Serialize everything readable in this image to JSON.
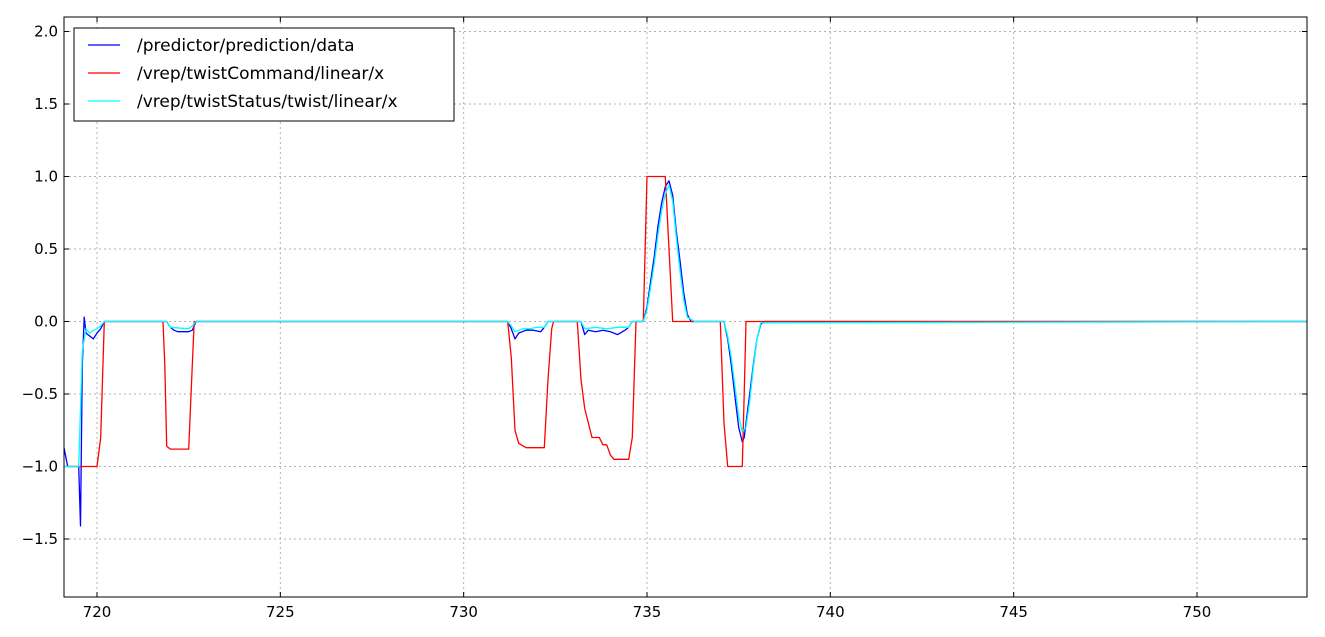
{
  "chart_data": {
    "type": "line",
    "title": "",
    "xlabel": "",
    "ylabel": "",
    "xlim": [
      719.1,
      753.0
    ],
    "ylim": [
      -1.9,
      2.1
    ],
    "xticks": [
      720,
      725,
      730,
      735,
      740,
      745,
      750
    ],
    "yticks": [
      -1.5,
      -1.0,
      -0.5,
      0.0,
      0.5,
      1.0,
      1.5,
      2.0
    ],
    "xtick_labels": [
      "720",
      "725",
      "730",
      "735",
      "740",
      "745",
      "750"
    ],
    "ytick_labels": [
      "−1.5",
      "−1.0",
      "−0.5",
      "0.0",
      "0.5",
      "1.0",
      "1.5",
      "2.0"
    ],
    "grid": true,
    "legend_position": "top-left",
    "series": [
      {
        "name": "/predictor/prediction/data",
        "color": "#0000ff",
        "x": [
          719.1,
          719.2,
          719.3,
          719.4,
          719.5,
          719.55,
          719.6,
          719.65,
          719.7,
          719.8,
          719.9,
          720.0,
          720.1,
          720.2,
          721.9,
          722.0,
          722.1,
          722.2,
          722.4,
          722.5,
          722.6,
          722.7,
          731.2,
          731.3,
          731.4,
          731.5,
          731.7,
          731.9,
          732.1,
          732.2,
          732.3,
          733.2,
          733.3,
          733.4,
          733.6,
          733.8,
          734.0,
          734.2,
          734.4,
          734.5,
          734.6,
          734.9,
          735.0,
          735.1,
          735.2,
          735.3,
          735.4,
          735.5,
          735.6,
          735.7,
          735.8,
          735.9,
          736.0,
          736.1,
          736.2,
          736.3,
          737.1,
          737.2,
          737.3,
          737.4,
          737.5,
          737.6,
          737.65,
          737.7,
          737.8,
          737.9,
          738.0,
          738.1,
          738.2,
          753.0
        ],
        "y": [
          -0.87,
          -1.0,
          -1.0,
          -1.0,
          -1.0,
          -1.41,
          -0.3,
          0.03,
          -0.08,
          -0.1,
          -0.12,
          -0.08,
          -0.05,
          0.0,
          0.0,
          -0.04,
          -0.06,
          -0.07,
          -0.07,
          -0.07,
          -0.06,
          0.0,
          0.0,
          -0.05,
          -0.12,
          -0.08,
          -0.06,
          -0.06,
          -0.07,
          -0.04,
          0.0,
          0.0,
          -0.09,
          -0.06,
          -0.07,
          -0.06,
          -0.07,
          -0.09,
          -0.06,
          -0.04,
          0.0,
          0.0,
          0.1,
          0.28,
          0.45,
          0.66,
          0.82,
          0.93,
          0.97,
          0.87,
          0.62,
          0.42,
          0.2,
          0.05,
          0.0,
          0.0,
          0.0,
          -0.12,
          -0.3,
          -0.52,
          -0.73,
          -0.83,
          -0.8,
          -0.7,
          -0.5,
          -0.3,
          -0.12,
          -0.02,
          0.0,
          0.0
        ]
      },
      {
        "name": "/vrep/twistCommand/linear/x",
        "color": "#ff0000",
        "x": [
          719.1,
          719.2,
          720.0,
          720.1,
          720.2,
          721.8,
          721.85,
          721.9,
          722.0,
          722.5,
          722.6,
          722.65,
          731.2,
          731.3,
          731.4,
          731.5,
          731.7,
          732.2,
          732.3,
          732.4,
          732.45,
          733.1,
          733.2,
          733.3,
          733.5,
          733.7,
          733.8,
          733.9,
          734.0,
          734.1,
          734.5,
          734.6,
          734.7,
          734.9,
          735.0,
          735.5,
          735.6,
          735.7,
          736.2,
          737.0,
          737.1,
          737.2,
          737.6,
          737.65,
          737.7,
          753.0
        ],
        "y": [
          -1.0,
          -1.0,
          -1.0,
          -0.8,
          0.0,
          0.0,
          -0.3,
          -0.86,
          -0.88,
          -0.88,
          -0.3,
          0.0,
          0.0,
          -0.25,
          -0.75,
          -0.84,
          -0.87,
          -0.87,
          -0.4,
          -0.05,
          0.0,
          0.0,
          -0.4,
          -0.6,
          -0.8,
          -0.8,
          -0.85,
          -0.85,
          -0.92,
          -0.95,
          -0.95,
          -0.8,
          0.0,
          0.0,
          1.0,
          1.0,
          0.5,
          0.0,
          0.0,
          0.0,
          -0.7,
          -1.0,
          -1.0,
          -0.5,
          0.0,
          0.0
        ]
      },
      {
        "name": "/vrep/twistStatus/twist/linear/x",
        "color": "#00ffff",
        "x": [
          719.1,
          719.2,
          719.5,
          719.6,
          719.7,
          719.8,
          719.9,
          720.0,
          720.1,
          720.2,
          721.9,
          722.0,
          722.5,
          722.6,
          722.7,
          731.2,
          731.3,
          731.4,
          731.6,
          731.8,
          732.0,
          732.2,
          732.3,
          733.2,
          733.3,
          733.6,
          733.9,
          734.2,
          734.5,
          734.6,
          734.9,
          735.0,
          735.1,
          735.2,
          735.3,
          735.4,
          735.5,
          735.6,
          735.7,
          735.8,
          735.9,
          736.0,
          736.1,
          736.3,
          737.1,
          737.2,
          737.3,
          737.4,
          737.5,
          737.6,
          737.7,
          737.8,
          737.9,
          738.0,
          738.1,
          753.0
        ],
        "y": [
          -1.0,
          -1.0,
          -1.0,
          -0.2,
          -0.05,
          -0.08,
          -0.06,
          -0.05,
          -0.03,
          0.0,
          0.0,
          -0.04,
          -0.05,
          -0.03,
          0.0,
          0.0,
          -0.03,
          -0.07,
          -0.05,
          -0.05,
          -0.04,
          -0.04,
          0.0,
          0.0,
          -0.05,
          -0.04,
          -0.05,
          -0.04,
          -0.04,
          0.0,
          0.0,
          0.08,
          0.24,
          0.4,
          0.6,
          0.77,
          0.88,
          0.94,
          0.83,
          0.58,
          0.35,
          0.15,
          0.03,
          0.0,
          0.0,
          -0.1,
          -0.25,
          -0.45,
          -0.65,
          -0.76,
          -0.73,
          -0.55,
          -0.32,
          -0.12,
          -0.01,
          0.0
        ]
      }
    ]
  }
}
